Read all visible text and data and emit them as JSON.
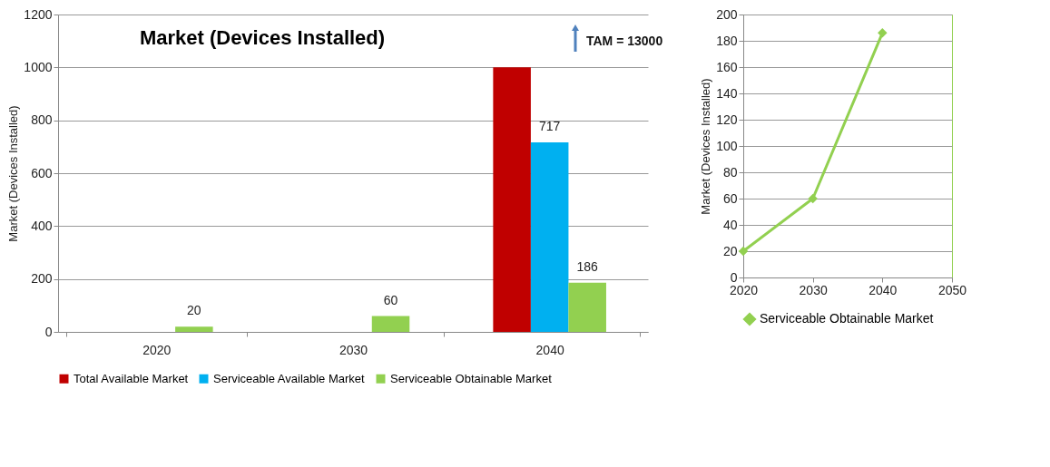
{
  "chart_data": [
    {
      "type": "bar",
      "title": "Market (Devices Installed)",
      "ylabel": "Market  (Devices Installed)",
      "categories": [
        "2020",
        "2030",
        "2040"
      ],
      "series": [
        {
          "name": "Total Available Market",
          "color": "#c00000",
          "values": [
            null,
            null,
            1000
          ]
        },
        {
          "name": "Serviceable Available Market",
          "color": "#00b0f0",
          "values": [
            null,
            null,
            717
          ],
          "value_labels": [
            null,
            null,
            "717"
          ]
        },
        {
          "name": "Serviceable Obtainable Market",
          "color": "#92d050",
          "values": [
            20,
            60,
            186
          ],
          "value_labels": [
            "20",
            "60",
            "186"
          ]
        }
      ],
      "ylim": [
        0,
        1200
      ],
      "yticks": [
        0,
        200,
        400,
        600,
        800,
        1000,
        1200
      ],
      "grid": "y",
      "legend": "bottom",
      "annotations": [
        "TAM = 13000"
      ]
    },
    {
      "type": "line",
      "ylabel": "Market  (Devices Installed)",
      "series": [
        {
          "name": "Serviceable Obtainable Market",
          "color": "#92d050",
          "x": [
            2020,
            2030,
            2040
          ],
          "values": [
            20,
            60,
            186
          ]
        }
      ],
      "xlim": [
        2020,
        2050
      ],
      "xticks": [
        2020,
        2030,
        2040,
        2050
      ],
      "ylim": [
        0,
        200
      ],
      "yticks": [
        0,
        20,
        40,
        60,
        80,
        100,
        120,
        140,
        160,
        180,
        200
      ],
      "grid": "y",
      "legend": "bottom",
      "marker": "diamond",
      "line_style": "solid"
    }
  ]
}
